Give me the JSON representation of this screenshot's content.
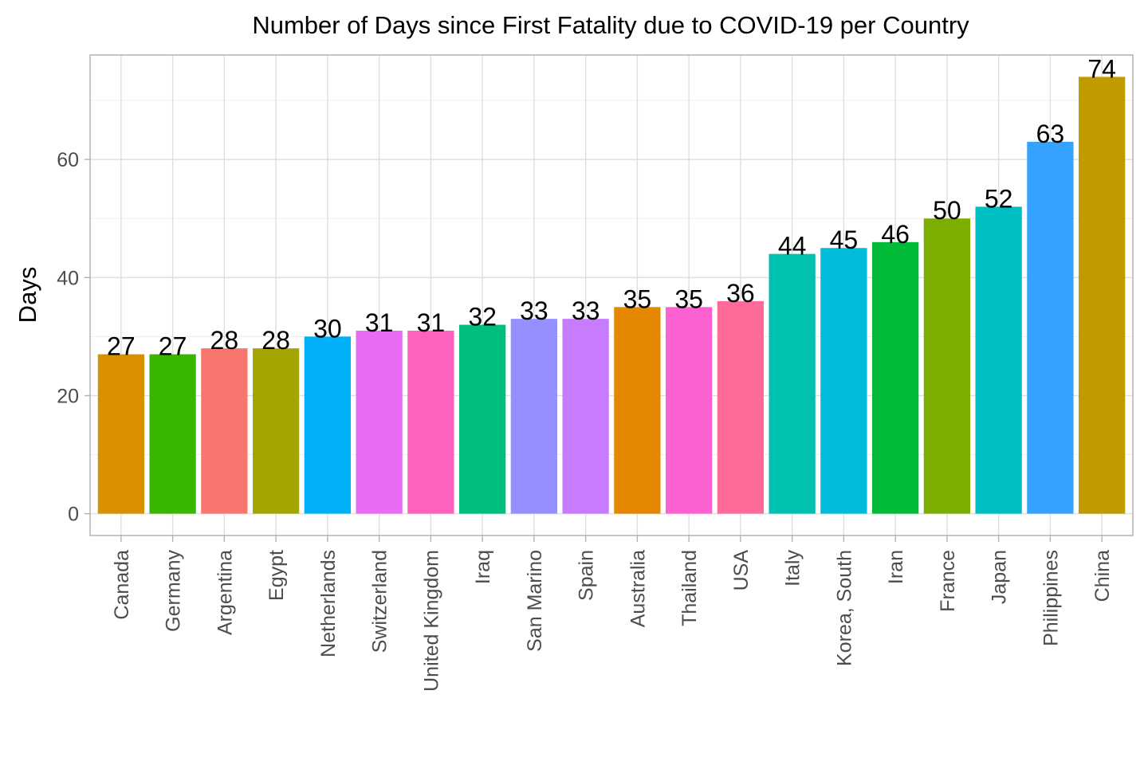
{
  "chart_data": {
    "type": "bar",
    "title": "Number of Days since First Fatality due to COVID-19 per Country",
    "xlabel": "",
    "ylabel": "Days",
    "categories": [
      "Canada",
      "Germany",
      "Argentina",
      "Egypt",
      "Netherlands",
      "Switzerland",
      "United Kingdom",
      "Iraq",
      "San Marino",
      "Spain",
      "Australia",
      "Thailand",
      "USA",
      "Italy",
      "Korea, South",
      "Iran",
      "France",
      "Japan",
      "Philippines",
      "China"
    ],
    "values": [
      27,
      27,
      28,
      28,
      30,
      31,
      31,
      32,
      33,
      33,
      35,
      35,
      36,
      44,
      45,
      46,
      50,
      52,
      63,
      74
    ],
    "colors": [
      "#D89000",
      "#39B600",
      "#F8766D",
      "#A3A500",
      "#00B0F6",
      "#E76BF3",
      "#FF62BC",
      "#00BF7D",
      "#9590FF",
      "#C77CFF",
      "#E58700",
      "#FD61D1",
      "#FF6A98",
      "#00C0AF",
      "#00BCD8",
      "#00BA38",
      "#7CAE00",
      "#00BFC4",
      "#35A2FF",
      "#C09B00"
    ],
    "yticks": [
      0,
      20,
      40,
      60
    ],
    "ylim": [
      -3.7,
      77.7
    ],
    "grid": true,
    "legend": "none"
  }
}
